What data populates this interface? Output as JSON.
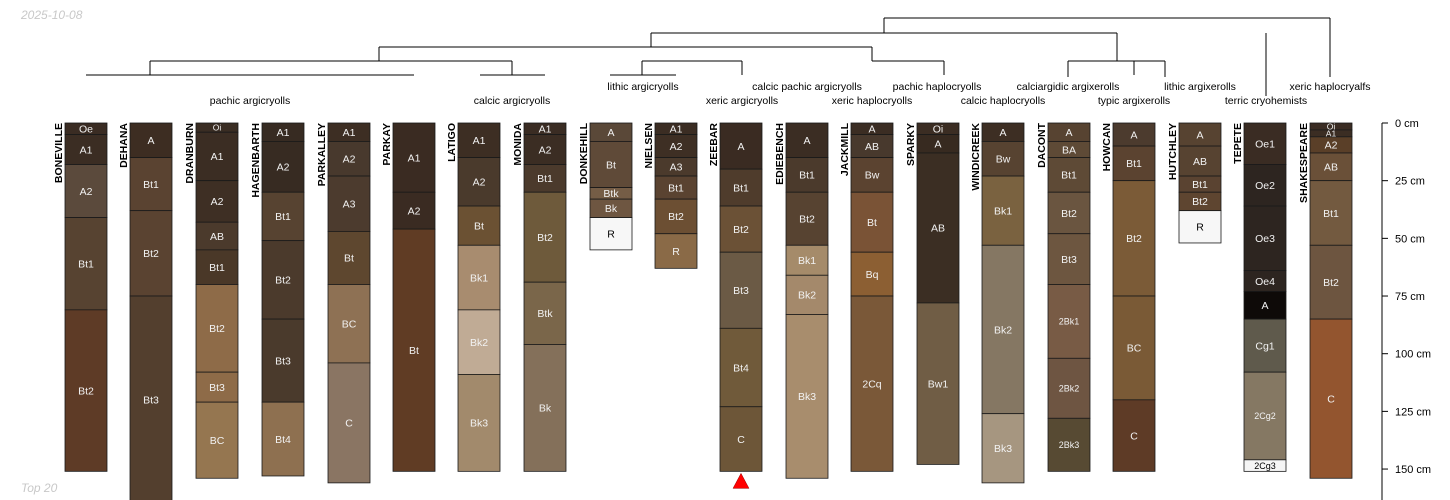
{
  "header": {
    "date": "2025-10-08"
  },
  "footer": {
    "label": "Top 20"
  },
  "depth_axis": {
    "unit": "cm",
    "ticks": [
      {
        "depth": 0,
        "label": "0 cm"
      },
      {
        "depth": 25,
        "label": "25 cm"
      },
      {
        "depth": 50,
        "label": "50 cm"
      },
      {
        "depth": 75,
        "label": "75 cm"
      },
      {
        "depth": 100,
        "label": "100 cm"
      },
      {
        "depth": 125,
        "label": "125 cm"
      },
      {
        "depth": 150,
        "label": "150 cm"
      }
    ]
  },
  "taxa": [
    {
      "label": "pachic argicryolls",
      "line": 2
    },
    {
      "label": "calcic argicryolls",
      "line": 2
    },
    {
      "label": "lithic argicryolls",
      "line": 1
    },
    {
      "label": "xeric argicryolls",
      "line": 2
    },
    {
      "label": "calcic pachic argicryolls",
      "line": 1
    },
    {
      "label": "xeric haplocryolls",
      "line": 2
    },
    {
      "label": "pachic haplocryolls",
      "line": 1
    },
    {
      "label": "calcic haplocryolls",
      "line": 2
    },
    {
      "label": "calciargidic argixerolls",
      "line": 1
    },
    {
      "label": "typic argixerolls",
      "line": 2
    },
    {
      "label": "lithic argixerolls",
      "line": 1
    },
    {
      "label": "terric cryohemists",
      "line": 2
    },
    {
      "label": "xeric haplocryalfs",
      "line": 1
    }
  ],
  "profiles": [
    {
      "name": "BONEVILLE",
      "horizons": [
        {
          "name": "Oe",
          "top": 0,
          "bottom": 5,
          "color": "#3a2c23"
        },
        {
          "name": "A1",
          "top": 5,
          "bottom": 18,
          "color": "#3b2d23"
        },
        {
          "name": "A2",
          "top": 18,
          "bottom": 41,
          "color": "#5b4a3c"
        },
        {
          "name": "Bt1",
          "top": 41,
          "bottom": 81,
          "color": "#574331"
        },
        {
          "name": "Bt2",
          "top": 81,
          "bottom": 151,
          "color": "#5e3b26"
        }
      ]
    },
    {
      "name": "DEHANA",
      "horizons": [
        {
          "name": "A",
          "top": 0,
          "bottom": 15,
          "color": "#3d2d22"
        },
        {
          "name": "Bt1",
          "top": 15,
          "bottom": 38,
          "color": "#5a4331"
        },
        {
          "name": "Bt2",
          "top": 38,
          "bottom": 75,
          "color": "#5a4331"
        },
        {
          "name": "Bt3",
          "top": 75,
          "bottom": 165,
          "color": "#533f2e"
        }
      ]
    },
    {
      "name": "DRANBURN",
      "horizons": [
        {
          "name": "Oi",
          "top": 0,
          "bottom": 4,
          "color": "#3a2d23"
        },
        {
          "name": "A1",
          "top": 4,
          "bottom": 25,
          "color": "#3b2d23"
        },
        {
          "name": "A2",
          "top": 25,
          "bottom": 43,
          "color": "#3e2f24"
        },
        {
          "name": "AB",
          "top": 43,
          "bottom": 55,
          "color": "#4b3a2c"
        },
        {
          "name": "Bt1",
          "top": 55,
          "bottom": 70,
          "color": "#4a3828"
        },
        {
          "name": "Bt2",
          "top": 70,
          "bottom": 108,
          "color": "#8e6b48"
        },
        {
          "name": "Bt3",
          "top": 108,
          "bottom": 121,
          "color": "#8e6b48"
        },
        {
          "name": "BC",
          "top": 121,
          "bottom": 154,
          "color": "#957650"
        }
      ]
    },
    {
      "name": "HAGENBARTH",
      "horizons": [
        {
          "name": "A1",
          "top": 0,
          "bottom": 8,
          "color": "#372b22"
        },
        {
          "name": "A2",
          "top": 8,
          "bottom": 30,
          "color": "#372b22"
        },
        {
          "name": "Bt1",
          "top": 30,
          "bottom": 51,
          "color": "#574331"
        },
        {
          "name": "Bt2",
          "top": 51,
          "bottom": 85,
          "color": "#4b3a2c"
        },
        {
          "name": "Bt3",
          "top": 85,
          "bottom": 121,
          "color": "#4a3a2c"
        },
        {
          "name": "Bt4",
          "top": 121,
          "bottom": 153,
          "color": "#8e7050"
        }
      ]
    },
    {
      "name": "PARKALLEY",
      "horizons": [
        {
          "name": "A1",
          "top": 0,
          "bottom": 8,
          "color": "#3d2e23"
        },
        {
          "name": "A2",
          "top": 8,
          "bottom": 23,
          "color": "#48392d"
        },
        {
          "name": "A3",
          "top": 23,
          "bottom": 47,
          "color": "#4c3b2e"
        },
        {
          "name": "Bt",
          "top": 47,
          "bottom": 70,
          "color": "#5e472f"
        },
        {
          "name": "BC",
          "top": 70,
          "bottom": 104,
          "color": "#8e7154"
        },
        {
          "name": "C",
          "top": 104,
          "bottom": 156,
          "color": "#8a7563"
        }
      ]
    },
    {
      "name": "PARKAY",
      "horizons": [
        {
          "name": "A1",
          "top": 0,
          "bottom": 30,
          "color": "#3a2b22"
        },
        {
          "name": "A2",
          "top": 30,
          "bottom": 46,
          "color": "#3a2b22"
        },
        {
          "name": "Bt",
          "top": 46,
          "bottom": 151,
          "color": "#603c24"
        }
      ]
    },
    {
      "name": "LATIGO",
      "horizons": [
        {
          "name": "A1",
          "top": 0,
          "bottom": 15,
          "color": "#3d2e23"
        },
        {
          "name": "A2",
          "top": 15,
          "bottom": 36,
          "color": "#4a3a2c"
        },
        {
          "name": "Bt",
          "top": 36,
          "bottom": 53,
          "color": "#6b5133"
        },
        {
          "name": "Bk1",
          "top": 53,
          "bottom": 81,
          "color": "#a88c6f"
        },
        {
          "name": "Bk2",
          "top": 81,
          "bottom": 109,
          "color": "#c0ab95"
        },
        {
          "name": "Bk3",
          "top": 109,
          "bottom": 151,
          "color": "#a28a6c"
        }
      ]
    },
    {
      "name": "MONIDA",
      "horizons": [
        {
          "name": "A1",
          "top": 0,
          "bottom": 5,
          "color": "#3a2c23"
        },
        {
          "name": "A2",
          "top": 5,
          "bottom": 18,
          "color": "#3b2d23"
        },
        {
          "name": "Bt1",
          "top": 18,
          "bottom": 30,
          "color": "#4b3a2c"
        },
        {
          "name": "Bt2",
          "top": 30,
          "bottom": 69,
          "color": "#6e5a3b"
        },
        {
          "name": "Btk",
          "top": 69,
          "bottom": 96,
          "color": "#7a664a"
        },
        {
          "name": "Bk",
          "top": 96,
          "bottom": 151,
          "color": "#84705a"
        }
      ]
    },
    {
      "name": "DONKEHILL",
      "horizons": [
        {
          "name": "A",
          "top": 0,
          "bottom": 8,
          "color": "#5a4838"
        },
        {
          "name": "Bt",
          "top": 8,
          "bottom": 28,
          "color": "#5f4a38"
        },
        {
          "name": "Btk",
          "top": 28,
          "bottom": 33,
          "color": "#755d46"
        },
        {
          "name": "Bk",
          "top": 33,
          "bottom": 41,
          "color": "#6e5641"
        },
        {
          "name": "R",
          "top": 41,
          "bottom": 55,
          "color": "#f7f7f7"
        }
      ]
    },
    {
      "name": "NIELSEN",
      "horizons": [
        {
          "name": "A1",
          "top": 0,
          "bottom": 5,
          "color": "#3b2d23"
        },
        {
          "name": "A2",
          "top": 5,
          "bottom": 15,
          "color": "#3e2f24"
        },
        {
          "name": "A3",
          "top": 15,
          "bottom": 23,
          "color": "#4b3a2c"
        },
        {
          "name": "Bt1",
          "top": 23,
          "bottom": 33,
          "color": "#5a4331"
        },
        {
          "name": "Bt2",
          "top": 33,
          "bottom": 48,
          "color": "#6c4f33"
        },
        {
          "name": "R",
          "top": 48,
          "bottom": 63,
          "color": "#8a6a47"
        }
      ]
    },
    {
      "name": "ZEEBAR",
      "horizons": [
        {
          "name": "A",
          "top": 0,
          "bottom": 20,
          "color": "#3a2b22"
        },
        {
          "name": "Bt1",
          "top": 20,
          "bottom": 36,
          "color": "#4f3c2c"
        },
        {
          "name": "Bt2",
          "top": 36,
          "bottom": 56,
          "color": "#6b5136"
        },
        {
          "name": "Bt3",
          "top": 56,
          "bottom": 89,
          "color": "#6b5a45"
        },
        {
          "name": "Bt4",
          "top": 89,
          "bottom": 123,
          "color": "#705a3a"
        },
        {
          "name": "C",
          "top": 123,
          "bottom": 151,
          "color": "#6d5638"
        }
      ],
      "truncated": true
    },
    {
      "name": "EDIEBENCH",
      "horizons": [
        {
          "name": "A",
          "top": 0,
          "bottom": 15,
          "color": "#3b2d23"
        },
        {
          "name": "Bt1",
          "top": 15,
          "bottom": 30,
          "color": "#4b3a2c"
        },
        {
          "name": "Bt2",
          "top": 30,
          "bottom": 53,
          "color": "#574331"
        },
        {
          "name": "Bk1",
          "top": 53,
          "bottom": 66,
          "color": "#a58b6a"
        },
        {
          "name": "Bk2",
          "top": 66,
          "bottom": 83,
          "color": "#a4896b"
        },
        {
          "name": "Bk3",
          "top": 83,
          "bottom": 154,
          "color": "#a88d6d"
        }
      ]
    },
    {
      "name": "JACKMILL",
      "horizons": [
        {
          "name": "A",
          "top": 0,
          "bottom": 5,
          "color": "#3b2d23"
        },
        {
          "name": "AB",
          "top": 5,
          "bottom": 15,
          "color": "#48392d"
        },
        {
          "name": "Bw",
          "top": 15,
          "bottom": 30,
          "color": "#5b4330"
        },
        {
          "name": "Bt",
          "top": 30,
          "bottom": 56,
          "color": "#7a5336"
        },
        {
          "name": "Bq",
          "top": 56,
          "bottom": 75,
          "color": "#8c5f33"
        },
        {
          "name": "2Cq",
          "top": 75,
          "bottom": 151,
          "color": "#7a5838"
        }
      ]
    },
    {
      "name": "SPARKY",
      "horizons": [
        {
          "name": "Oi",
          "top": 0,
          "bottom": 5,
          "color": "#3b2d23"
        },
        {
          "name": "A",
          "top": 5,
          "bottom": 13,
          "color": "#372a20"
        },
        {
          "name": "AB",
          "top": 13,
          "bottom": 78,
          "color": "#3b2e23"
        },
        {
          "name": "Bw1",
          "top": 78,
          "bottom": 148,
          "color": "#705d45"
        }
      ]
    },
    {
      "name": "WINDICREEK",
      "horizons": [
        {
          "name": "A",
          "top": 0,
          "bottom": 8,
          "color": "#3d2e23"
        },
        {
          "name": "Bw",
          "top": 8,
          "bottom": 23,
          "color": "#574331"
        },
        {
          "name": "Bk1",
          "top": 23,
          "bottom": 53,
          "color": "#7a6240"
        },
        {
          "name": "Bk2",
          "top": 53,
          "bottom": 126,
          "color": "#857763"
        },
        {
          "name": "Bk3",
          "top": 126,
          "bottom": 156,
          "color": "#a69680"
        }
      ]
    },
    {
      "name": "DACONT",
      "horizons": [
        {
          "name": "A",
          "top": 0,
          "bottom": 8,
          "color": "#574331"
        },
        {
          "name": "BA",
          "top": 8,
          "bottom": 15,
          "color": "#5e4a36"
        },
        {
          "name": "Bt1",
          "top": 15,
          "bottom": 30,
          "color": "#5e4a36"
        },
        {
          "name": "Bt2",
          "top": 30,
          "bottom": 48,
          "color": "#6a5540"
        },
        {
          "name": "Bt3",
          "top": 48,
          "bottom": 70,
          "color": "#6d5640"
        },
        {
          "name": "2Bk1",
          "top": 70,
          "bottom": 102,
          "color": "#785b45"
        },
        {
          "name": "2Bk2",
          "top": 102,
          "bottom": 128,
          "color": "#6e5542"
        },
        {
          "name": "2Bk3",
          "top": 128,
          "bottom": 151,
          "color": "#574a33"
        }
      ]
    },
    {
      "name": "HOWCAN",
      "horizons": [
        {
          "name": "A",
          "top": 0,
          "bottom": 10,
          "color": "#4c3b2e"
        },
        {
          "name": "Bt1",
          "top": 10,
          "bottom": 25,
          "color": "#5b4330"
        },
        {
          "name": "Bt2",
          "top": 25,
          "bottom": 75,
          "color": "#7b5b37"
        },
        {
          "name": "BC",
          "top": 75,
          "bottom": 120,
          "color": "#7a5a36"
        },
        {
          "name": "C",
          "top": 120,
          "bottom": 151,
          "color": "#5e3b26"
        }
      ]
    },
    {
      "name": "HUTCHLEY",
      "horizons": [
        {
          "name": "A",
          "top": 0,
          "bottom": 10,
          "color": "#574331"
        },
        {
          "name": "AB",
          "top": 10,
          "bottom": 23,
          "color": "#574331"
        },
        {
          "name": "Bt1",
          "top": 23,
          "bottom": 30,
          "color": "#5a4331"
        },
        {
          "name": "Bt2",
          "top": 30,
          "bottom": 38,
          "color": "#5e4530"
        },
        {
          "name": "R",
          "top": 38,
          "bottom": 52,
          "color": "#f7f7f7"
        }
      ]
    },
    {
      "name": "TEPETE",
      "horizons": [
        {
          "name": "Oe1",
          "top": 0,
          "bottom": 18,
          "color": "#3a2c23"
        },
        {
          "name": "Oe2",
          "top": 18,
          "bottom": 36,
          "color": "#2d2520"
        },
        {
          "name": "Oe3",
          "top": 36,
          "bottom": 64,
          "color": "#2d2520"
        },
        {
          "name": "Oe4",
          "top": 64,
          "bottom": 73,
          "color": "#2d2520"
        },
        {
          "name": "A",
          "top": 73,
          "bottom": 85,
          "color": "#0e0a08"
        },
        {
          "name": "Cg1",
          "top": 85,
          "bottom": 108,
          "color": "#5f5a4c"
        },
        {
          "name": "2Cg2",
          "top": 108,
          "bottom": 146,
          "color": "#857863"
        },
        {
          "name": "2Cg3",
          "top": 146,
          "bottom": 151,
          "color": "#f5f5f5"
        }
      ]
    },
    {
      "name": "SHAKESPEARE",
      "horizons": [
        {
          "name": "Oi",
          "top": 0,
          "bottom": 3,
          "color": "#3a2c23"
        },
        {
          "name": "A1",
          "top": 3,
          "bottom": 6,
          "color": "#3b2d23"
        },
        {
          "name": "A2",
          "top": 6,
          "bottom": 13,
          "color": "#5a3f28"
        },
        {
          "name": "AB",
          "top": 13,
          "bottom": 25,
          "color": "#6a5038"
        },
        {
          "name": "Bt1",
          "top": 25,
          "bottom": 53,
          "color": "#735a40"
        },
        {
          "name": "Bt2",
          "top": 53,
          "bottom": 85,
          "color": "#6d5540"
        },
        {
          "name": "C",
          "top": 85,
          "bottom": 154,
          "color": "#93552f"
        }
      ]
    }
  ]
}
